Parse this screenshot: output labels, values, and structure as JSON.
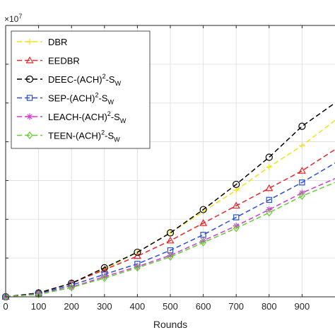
{
  "chart_data": {
    "type": "line",
    "title": "",
    "xlabel": "Rounds",
    "ylabel": "",
    "y_exponent_label": "×10",
    "y_exponent_power": "7",
    "xlim": [
      0,
      1000
    ],
    "ylim": [
      0,
      7
    ],
    "xticks": [
      0,
      100,
      200,
      300,
      400,
      500,
      600,
      700,
      800,
      900
    ],
    "xtick_labels": [
      "0",
      "100",
      "200",
      "300",
      "400",
      "500",
      "600",
      "700",
      "800",
      "900"
    ],
    "yticks": [
      1,
      2,
      3,
      4,
      5,
      6
    ],
    "grid": true,
    "legend_position": "top-left",
    "x": [
      0,
      100,
      200,
      300,
      400,
      500,
      600,
      700,
      800,
      900
    ],
    "series": [
      {
        "name": "DBR",
        "name_parts": {
          "base": "DBR",
          "sup": "",
          "after": "",
          "sub": ""
        },
        "color": "#f2e01a",
        "marker": "plus",
        "values": [
          0,
          0.1,
          0.35,
          0.72,
          1.15,
          1.65,
          2.2,
          2.75,
          3.35,
          3.9
        ],
        "end": [
          1000,
          4.55
        ]
      },
      {
        "name": "EEDBR",
        "name_parts": {
          "base": "EEDBR",
          "sup": "",
          "after": "",
          "sub": ""
        },
        "color": "#e8252b",
        "marker": "triangle",
        "values": [
          0,
          0.1,
          0.35,
          0.7,
          1.05,
          1.45,
          1.9,
          2.35,
          2.8,
          3.25
        ],
        "end": [
          1000,
          3.8
        ]
      },
      {
        "name": "DEEC-(ACH)2-SW",
        "name_parts": {
          "base": "DEEC-(ACH)",
          "sup": "2",
          "after": "-S",
          "sub": "W"
        },
        "color": "#000000",
        "marker": "circle",
        "values": [
          0,
          0.1,
          0.35,
          0.75,
          1.15,
          1.65,
          2.25,
          2.9,
          3.6,
          4.4
        ],
        "end": [
          1000,
          5.0
        ]
      },
      {
        "name": "SEP-(ACH)2-SW",
        "name_parts": {
          "base": "SEP-(ACH)",
          "sup": "2",
          "after": "-S",
          "sub": "W"
        },
        "color": "#2b4fd4",
        "marker": "square",
        "values": [
          0,
          0.08,
          0.3,
          0.58,
          0.85,
          1.2,
          1.6,
          2.05,
          2.5,
          2.95
        ],
        "end": [
          1000,
          3.45
        ]
      },
      {
        "name": "LEACH-(ACH)2-SW",
        "name_parts": {
          "base": "LEACH-(ACH)",
          "sup": "2",
          "after": "-S",
          "sub": "W"
        },
        "color": "#d23ad6",
        "marker": "asterisk",
        "values": [
          0,
          0.07,
          0.25,
          0.52,
          0.78,
          1.07,
          1.45,
          1.83,
          2.25,
          2.68
        ],
        "end": [
          1000,
          3.05
        ]
      },
      {
        "name": "TEEN-(ACH)2-SW",
        "name_parts": {
          "base": "TEEN-(ACH)",
          "sup": "2",
          "after": "-S",
          "sub": "W"
        },
        "color": "#5fd12a",
        "marker": "diamond",
        "values": [
          0,
          0.06,
          0.24,
          0.48,
          0.75,
          1.03,
          1.4,
          1.77,
          2.17,
          2.6
        ],
        "end": [
          1000,
          2.95
        ]
      }
    ]
  }
}
